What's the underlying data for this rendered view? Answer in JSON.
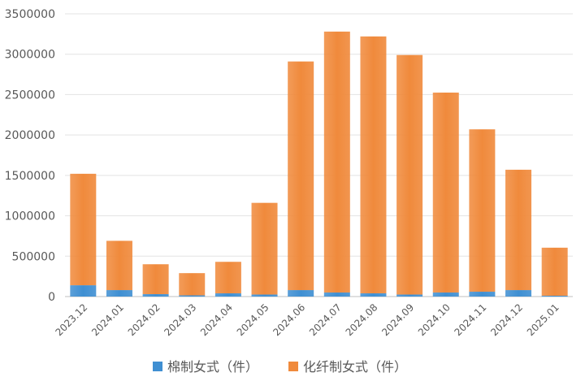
{
  "chart_data": {
    "type": "bar",
    "stacked": true,
    "categories": [
      "2023.12",
      "2024.01",
      "2024.02",
      "2024.03",
      "2024.04",
      "2024.05",
      "2024.06",
      "2024.07",
      "2024.08",
      "2024.09",
      "2024.10",
      "2024.11",
      "2024.12",
      "2025.01"
    ],
    "series": [
      {
        "name": "棉制女式（件）",
        "color": "#3f8fd2",
        "values": [
          140000,
          80000,
          30000,
          15000,
          40000,
          25000,
          80000,
          50000,
          40000,
          25000,
          50000,
          60000,
          80000,
          10000
        ]
      },
      {
        "name": "化纤制女式（件）",
        "color": "#f08a3c",
        "values": [
          1380000,
          610000,
          370000,
          275000,
          390000,
          1135000,
          2830000,
          3230000,
          3180000,
          2965000,
          2475000,
          2010000,
          1490000,
          595000
        ]
      }
    ],
    "ylim": [
      0,
      3500000
    ],
    "yticks": [
      0,
      500000,
      1000000,
      1500000,
      2000000,
      2500000,
      3000000,
      3500000
    ],
    "ytick_labels": [
      "0",
      "500000",
      "1000000",
      "1500000",
      "2000000",
      "2500000",
      "3000000",
      "3500000"
    ],
    "grid": true,
    "legend_position": "bottom"
  }
}
